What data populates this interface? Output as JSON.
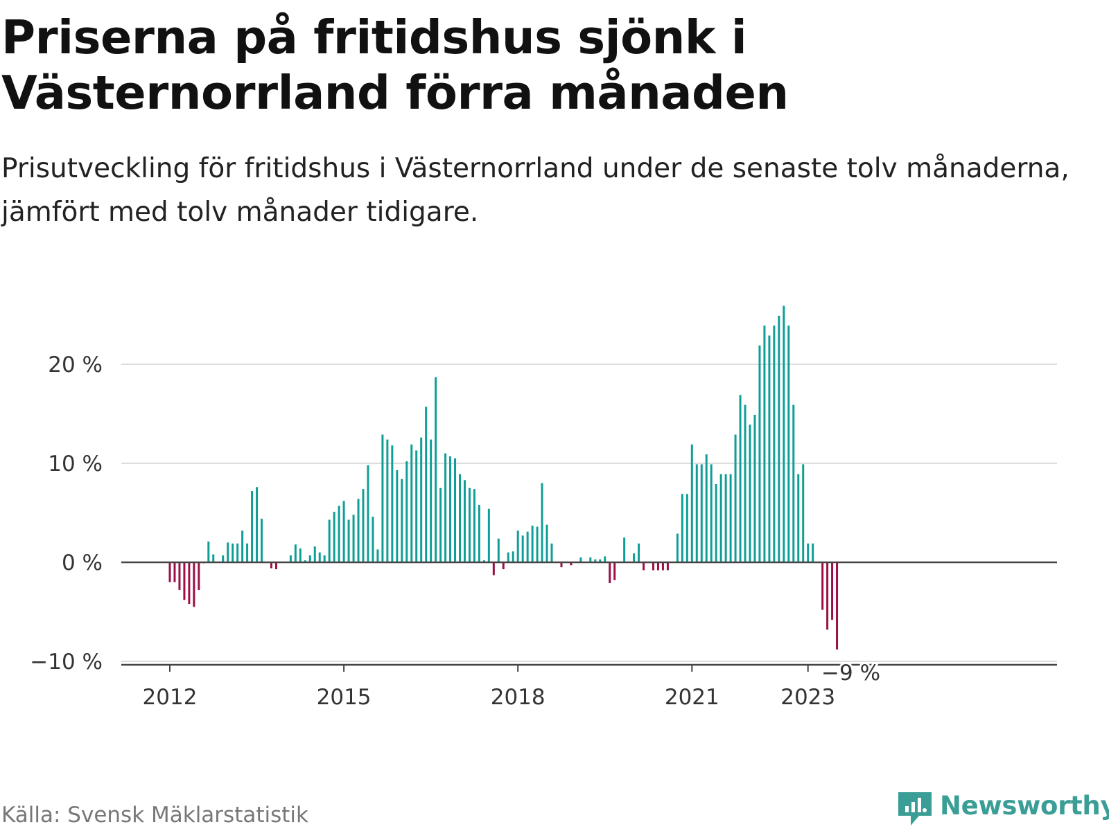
{
  "title": "Priserna på fritidshus sjönk i Västernorrland förra månaden",
  "subtitle": "Prisutveckling för fritidshus i Västernorrland under de senaste tolv månaderna, jämfört med tolv månader tidigare.",
  "source": "Källa: Svensk Mäklarstatistik",
  "brand": {
    "name": "Newsworthy",
    "logo_icon": "bar-chart-speech-bubble-icon"
  },
  "colors": {
    "positive": "#0f9e96",
    "negative": "#9c0f45",
    "baseline": "#444444",
    "grid": "#dddddd",
    "brand": "#3a9e96"
  },
  "chart_data": {
    "type": "bar",
    "title": "Priserna på fritidshus sjönk i Västernorrland förra månaden",
    "ylabel": "",
    "xlabel": "",
    "unit": "%",
    "start": "2012-01",
    "ylim": [
      -10,
      26
    ],
    "y_ticks": [
      {
        "value": -10,
        "label": "−10 %"
      },
      {
        "value": 0,
        "label": "0 %"
      },
      {
        "value": 10,
        "label": "10 %"
      },
      {
        "value": 20,
        "label": "20 %"
      }
    ],
    "x_ticks": [
      {
        "month": "2012-01",
        "label": "2012"
      },
      {
        "month": "2015-01",
        "label": "2015"
      },
      {
        "month": "2018-01",
        "label": "2018"
      },
      {
        "month": "2021-01",
        "label": "2021"
      },
      {
        "month": "2023-01",
        "label": "2023"
      }
    ],
    "grid": true,
    "last_value_label": "−9 %",
    "values": [
      -2.0,
      -2.0,
      -2.8,
      -3.8,
      -4.2,
      -4.5,
      -2.8,
      -0.1,
      2.1,
      0.8,
      0.0,
      0.7,
      2.0,
      1.9,
      1.9,
      3.2,
      1.9,
      7.2,
      7.6,
      4.4,
      0.0,
      -0.6,
      -0.7,
      0.0,
      0.0,
      0.7,
      1.8,
      1.4,
      0.2,
      0.7,
      1.6,
      1.0,
      0.7,
      4.3,
      5.1,
      5.7,
      6.2,
      4.3,
      4.8,
      6.4,
      7.4,
      9.8,
      4.6,
      1.3,
      12.9,
      12.4,
      11.8,
      9.3,
      8.4,
      10.2,
      11.9,
      11.3,
      12.6,
      15.7,
      12.4,
      18.7,
      7.5,
      11.0,
      10.7,
      10.5,
      8.9,
      8.3,
      7.5,
      7.4,
      5.8,
      0.2,
      5.4,
      -1.3,
      2.4,
      -0.7,
      1.0,
      1.1,
      3.2,
      2.7,
      3.1,
      3.7,
      3.6,
      8.0,
      3.8,
      1.9,
      0.0,
      -0.5,
      0.0,
      -0.3,
      0.0,
      0.5,
      0.0,
      0.5,
      0.3,
      0.3,
      0.6,
      -2.1,
      -1.8,
      0.0,
      2.5,
      0.0,
      0.9,
      1.9,
      -0.8,
      0.0,
      -0.8,
      -0.8,
      -0.8,
      -0.8,
      0.0,
      2.9,
      6.9,
      6.9,
      11.9,
      9.9,
      9.9,
      10.9,
      9.9,
      7.9,
      8.9,
      8.9,
      8.9,
      12.9,
      16.9,
      15.9,
      13.9,
      14.9,
      21.9,
      23.9,
      22.9,
      23.9,
      24.9,
      25.9,
      23.9,
      15.9,
      8.9,
      9.9,
      1.9,
      1.9,
      0.0,
      -4.8,
      -6.8,
      -5.8,
      -8.8
    ]
  }
}
